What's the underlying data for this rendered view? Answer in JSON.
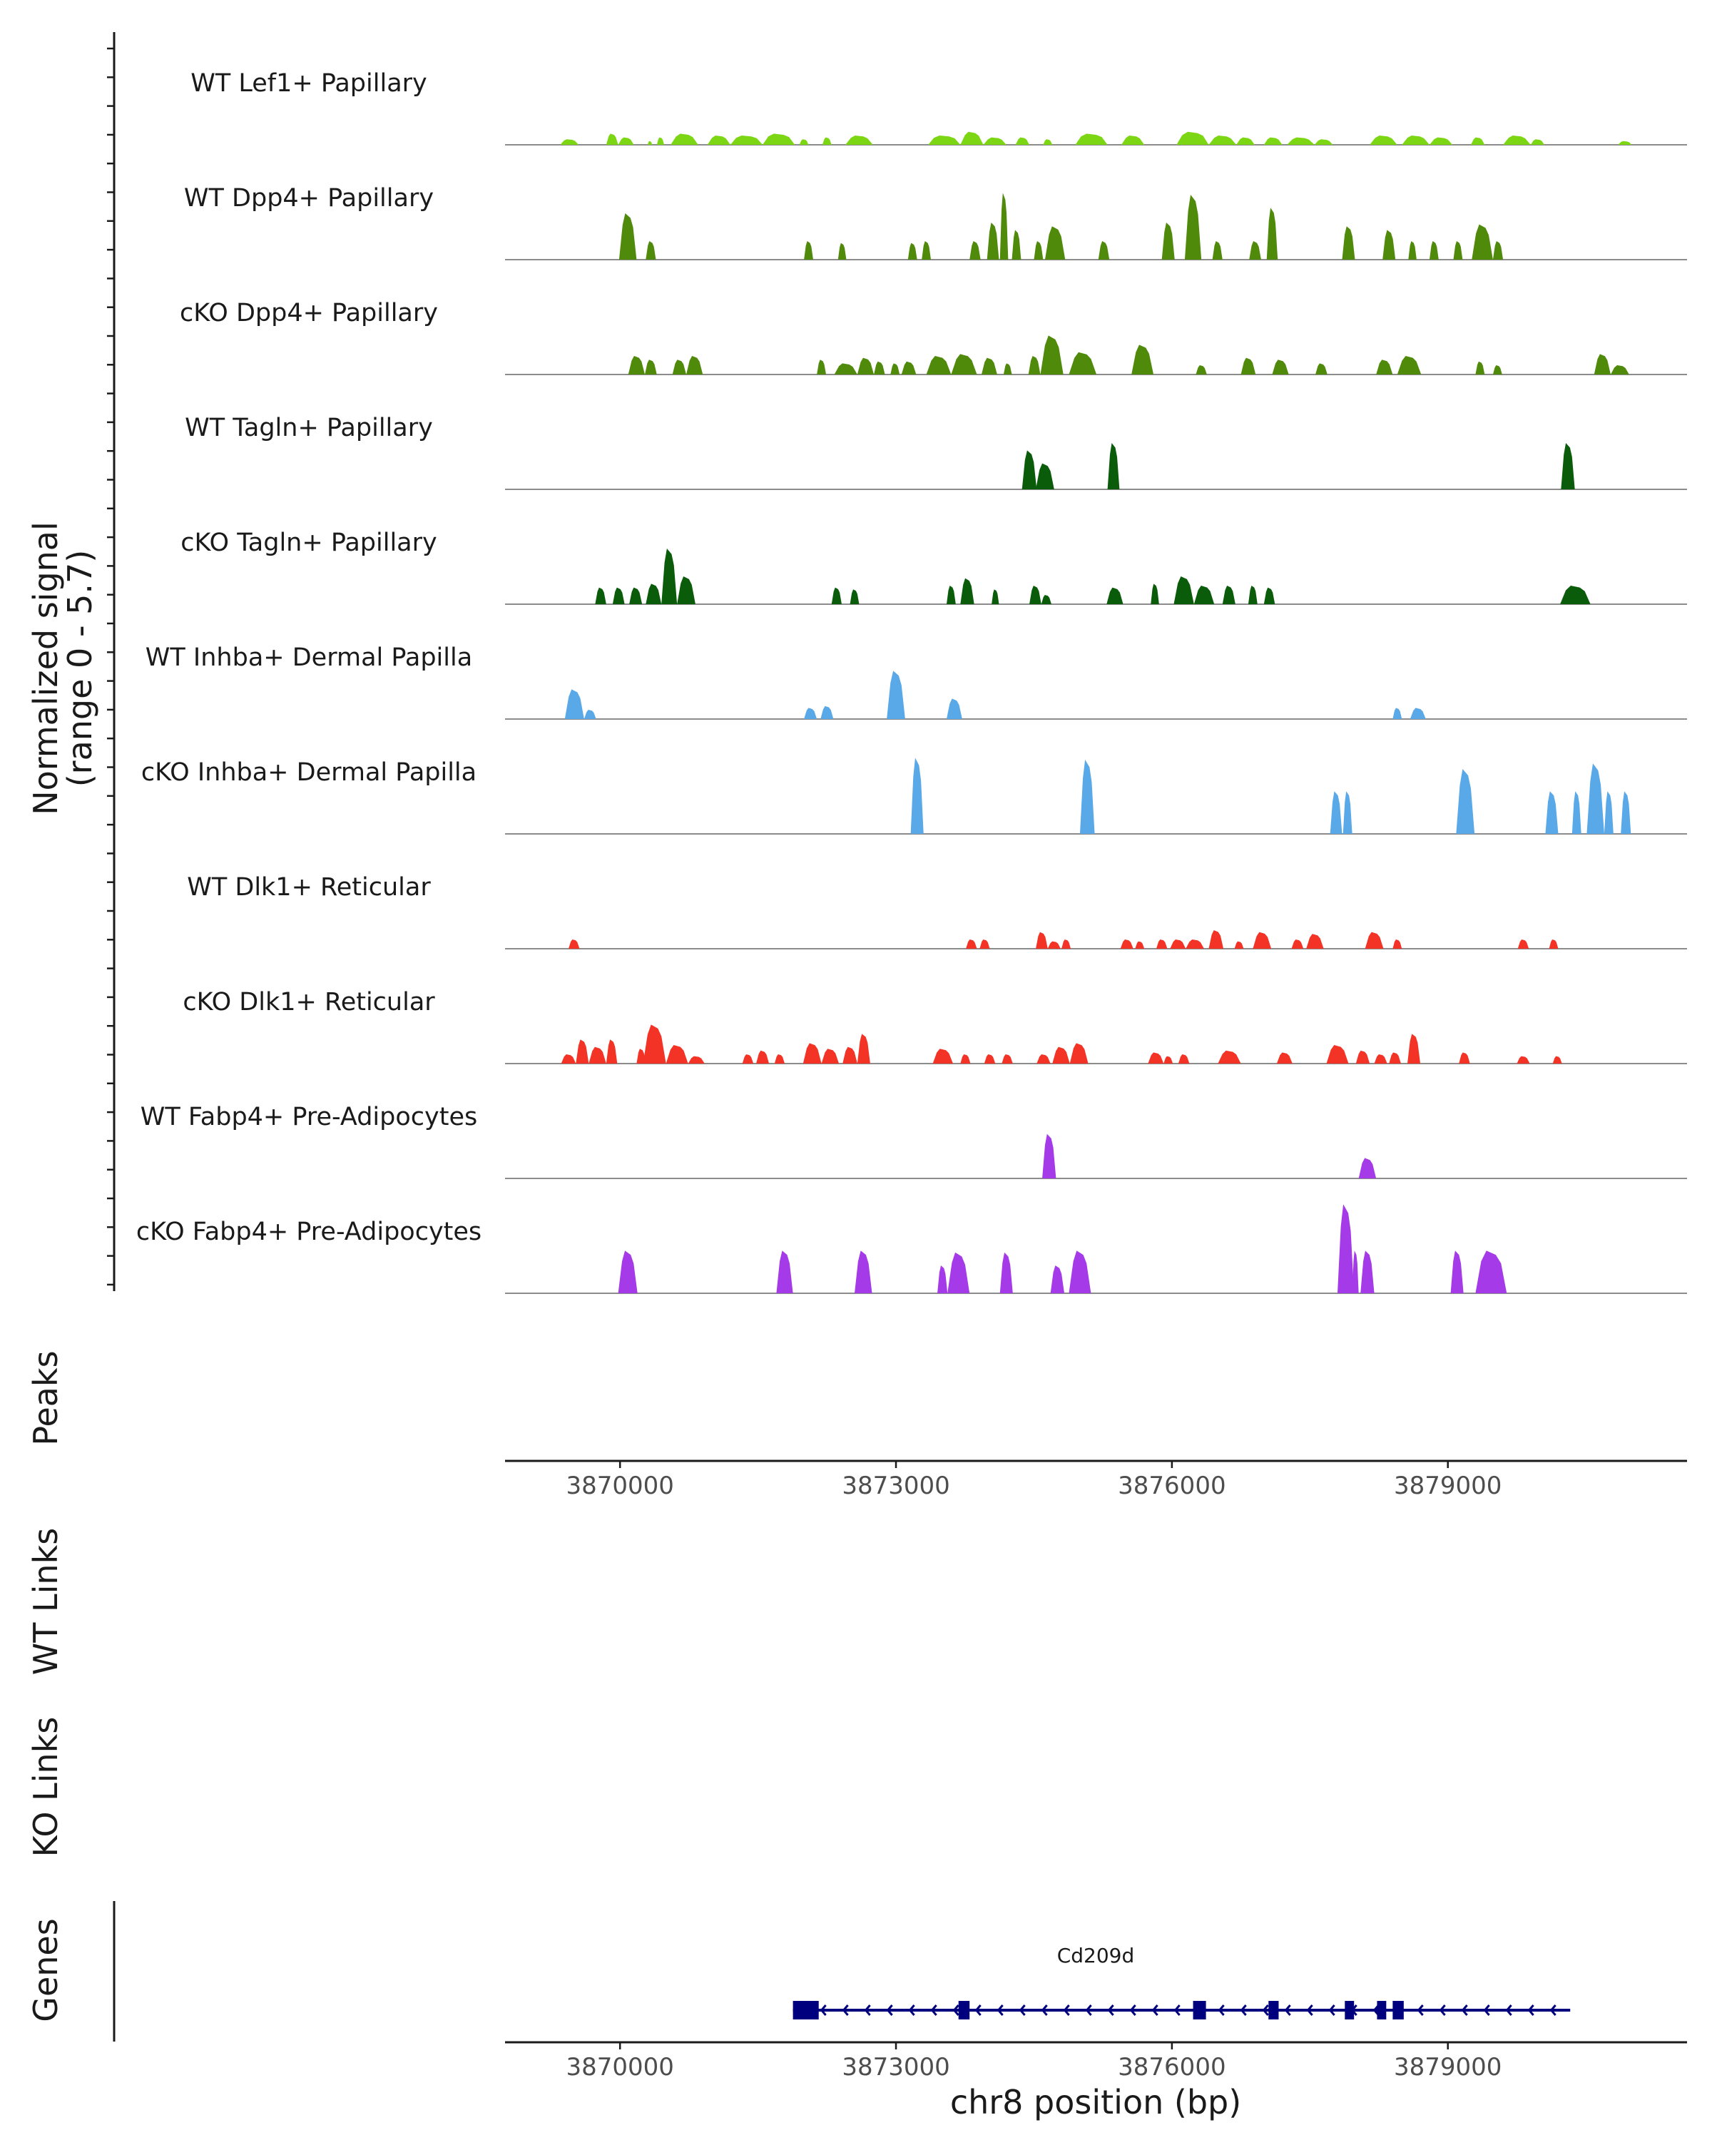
{
  "chart_data": {
    "type": "area",
    "title": "",
    "chromosome": "chr8",
    "xlabel": "chr8 position (bp)",
    "ylabel": [
      "Normalized signal",
      "(range 0 - 5.7)"
    ],
    "xlim": [
      3868750,
      3881600
    ],
    "ylim": [
      0,
      5.7
    ],
    "x_ticks": [
      {
        "value": 3870000,
        "label": "3870000"
      },
      {
        "value": 3873000,
        "label": "3873000"
      },
      {
        "value": 3876000,
        "label": "3876000"
      },
      {
        "value": 3879000,
        "label": "3879000"
      }
    ],
    "panel_labels": {
      "peaks": "Peaks",
      "wt_links": "WT Links",
      "ko_links": "KO Links",
      "genes": "Genes"
    },
    "tracks": [
      {
        "name": "WT Lef1+ Papillary",
        "color": "#7cd614",
        "segments": [
          [
            3869350,
            3869550,
            0.3
          ],
          [
            3869850,
            3869980,
            0.6
          ],
          [
            3869980,
            3870150,
            0.4
          ],
          [
            3870300,
            3870350,
            0.2
          ],
          [
            3870400,
            3870480,
            0.4
          ],
          [
            3870550,
            3870850,
            0.6
          ],
          [
            3870950,
            3871200,
            0.5
          ],
          [
            3871200,
            3871550,
            0.5
          ],
          [
            3871550,
            3871900,
            0.6
          ],
          [
            3871950,
            3872050,
            0.3
          ],
          [
            3872200,
            3872300,
            0.4
          ],
          [
            3872450,
            3872750,
            0.5
          ],
          [
            3873350,
            3873700,
            0.5
          ],
          [
            3873700,
            3873950,
            0.7
          ],
          [
            3873950,
            3874200,
            0.4
          ],
          [
            3874300,
            3874450,
            0.4
          ],
          [
            3874600,
            3874700,
            0.3
          ],
          [
            3874950,
            3875300,
            0.6
          ],
          [
            3875450,
            3875700,
            0.5
          ],
          [
            3876050,
            3876400,
            0.7
          ],
          [
            3876400,
            3876700,
            0.5
          ],
          [
            3876700,
            3876900,
            0.4
          ],
          [
            3877000,
            3877200,
            0.4
          ],
          [
            3877250,
            3877550,
            0.4
          ],
          [
            3877550,
            3877750,
            0.3
          ],
          [
            3878150,
            3878450,
            0.5
          ],
          [
            3878500,
            3878800,
            0.5
          ],
          [
            3878800,
            3879050,
            0.4
          ],
          [
            3879250,
            3879400,
            0.4
          ],
          [
            3879600,
            3879900,
            0.5
          ],
          [
            3879900,
            3880050,
            0.3
          ],
          [
            3880850,
            3881000,
            0.2
          ]
        ]
      },
      {
        "name": "WT Dpp4+ Papillary",
        "color": "#4f8a0b",
        "segments": [
          [
            3869990,
            3870180,
            2.5
          ],
          [
            3870280,
            3870390,
            1.0
          ],
          [
            3872000,
            3872100,
            1.0
          ],
          [
            3872370,
            3872460,
            0.9
          ],
          [
            3873130,
            3873230,
            0.9
          ],
          [
            3873280,
            3873380,
            1.0
          ],
          [
            3873800,
            3873920,
            1.0
          ],
          [
            3873990,
            3874120,
            2.0
          ],
          [
            3874130,
            3874220,
            3.6
          ],
          [
            3874260,
            3874360,
            1.6
          ],
          [
            3874500,
            3874600,
            1.0
          ],
          [
            3874620,
            3874840,
            1.8
          ],
          [
            3875200,
            3875320,
            1.0
          ],
          [
            3875890,
            3876030,
            2.0
          ],
          [
            3876140,
            3876320,
            3.5
          ],
          [
            3876440,
            3876550,
            1.0
          ],
          [
            3876840,
            3876970,
            1.0
          ],
          [
            3877030,
            3877150,
            2.8
          ],
          [
            3877850,
            3877990,
            1.8
          ],
          [
            3878290,
            3878430,
            1.6
          ],
          [
            3878570,
            3878660,
            1.0
          ],
          [
            3878800,
            3878900,
            1.0
          ],
          [
            3879060,
            3879160,
            1.0
          ],
          [
            3879260,
            3879490,
            1.9
          ],
          [
            3879490,
            3879600,
            1.0
          ]
        ]
      },
      {
        "name": "cKO Dpp4+ Papillary",
        "color": "#4f8a0b",
        "segments": [
          [
            3870090,
            3870270,
            1.0
          ],
          [
            3870270,
            3870400,
            0.8
          ],
          [
            3870570,
            3870720,
            0.8
          ],
          [
            3870720,
            3870900,
            1.0
          ],
          [
            3872140,
            3872240,
            0.8
          ],
          [
            3872330,
            3872580,
            0.6
          ],
          [
            3872580,
            3872760,
            0.9
          ],
          [
            3872760,
            3872880,
            0.7
          ],
          [
            3872940,
            3873040,
            0.6
          ],
          [
            3873060,
            3873220,
            0.7
          ],
          [
            3873330,
            3873600,
            1.0
          ],
          [
            3873600,
            3873880,
            1.1
          ],
          [
            3873930,
            3874100,
            0.9
          ],
          [
            3874170,
            3874260,
            0.6
          ],
          [
            3874440,
            3874570,
            1.0
          ],
          [
            3874570,
            3874820,
            2.1
          ],
          [
            3874880,
            3875180,
            1.2
          ],
          [
            3875560,
            3875800,
            1.6
          ],
          [
            3876260,
            3876380,
            0.5
          ],
          [
            3876750,
            3876910,
            0.9
          ],
          [
            3877090,
            3877270,
            0.8
          ],
          [
            3877560,
            3877690,
            0.6
          ],
          [
            3878220,
            3878400,
            0.8
          ],
          [
            3878450,
            3878710,
            1.0
          ],
          [
            3879300,
            3879400,
            0.7
          ],
          [
            3879490,
            3879590,
            0.5
          ],
          [
            3880590,
            3880770,
            1.1
          ],
          [
            3880770,
            3880970,
            0.5
          ]
        ]
      },
      {
        "name": "WT Tagln+ Papillary",
        "color": "#0a5c0a",
        "segments": [
          [
            3874370,
            3874530,
            2.1
          ],
          [
            3874520,
            3874720,
            1.4
          ],
          [
            3875300,
            3875430,
            2.5
          ],
          [
            3880230,
            3880380,
            2.5
          ]
        ]
      },
      {
        "name": "cKO Tagln+ Papillary",
        "color": "#0a5c0a",
        "segments": [
          [
            3869730,
            3869850,
            0.9
          ],
          [
            3869920,
            3870050,
            0.9
          ],
          [
            3870100,
            3870240,
            0.9
          ],
          [
            3870280,
            3870450,
            1.1
          ],
          [
            3870450,
            3870620,
            3.0
          ],
          [
            3870620,
            3870820,
            1.5
          ],
          [
            3872300,
            3872410,
            0.9
          ],
          [
            3872500,
            3872600,
            0.8
          ],
          [
            3873550,
            3873650,
            1.0
          ],
          [
            3873700,
            3873850,
            1.4
          ],
          [
            3874040,
            3874120,
            0.8
          ],
          [
            3874450,
            3874580,
            1.0
          ],
          [
            3874580,
            3874690,
            0.5
          ],
          [
            3875290,
            3875470,
            0.9
          ],
          [
            3875770,
            3875860,
            1.1
          ],
          [
            3876020,
            3876240,
            1.5
          ],
          [
            3876240,
            3876460,
            1.0
          ],
          [
            3876550,
            3876690,
            1.0
          ],
          [
            3876830,
            3876930,
            1.0
          ],
          [
            3877000,
            3877120,
            0.9
          ],
          [
            3880220,
            3880550,
            1.0
          ]
        ]
      },
      {
        "name": "WT Inhba+ Dermal Papilla",
        "color": "#59a8e8",
        "segments": [
          [
            3869400,
            3869610,
            1.6
          ],
          [
            3869610,
            3869740,
            0.5
          ],
          [
            3872000,
            3872140,
            0.6
          ],
          [
            3872180,
            3872320,
            0.7
          ],
          [
            3872900,
            3873100,
            2.6
          ],
          [
            3873550,
            3873720,
            1.1
          ],
          [
            3878400,
            3878500,
            0.6
          ],
          [
            3878590,
            3878760,
            0.6
          ]
        ]
      },
      {
        "name": "cKO Inhba+ Dermal Papilla",
        "color": "#59a8e8",
        "segments": [
          [
            3873160,
            3873300,
            4.1
          ],
          [
            3875000,
            3875160,
            4.0
          ],
          [
            3877720,
            3877850,
            2.3
          ],
          [
            3877860,
            3877960,
            2.3
          ],
          [
            3879090,
            3879290,
            3.5
          ],
          [
            3880060,
            3880200,
            2.3
          ],
          [
            3880350,
            3880450,
            2.3
          ],
          [
            3880510,
            3880700,
            3.8
          ],
          [
            3880700,
            3880800,
            2.3
          ],
          [
            3880880,
            3880990,
            2.3
          ]
        ]
      },
      {
        "name": "WT Dlk1+ Reticular",
        "color": "#f23325",
        "segments": [
          [
            3869440,
            3869560,
            0.5
          ],
          [
            3873760,
            3873880,
            0.5
          ],
          [
            3873910,
            3874020,
            0.5
          ],
          [
            3874520,
            3874650,
            0.9
          ],
          [
            3874650,
            3874790,
            0.4
          ],
          [
            3874800,
            3874900,
            0.5
          ],
          [
            3875440,
            3875580,
            0.5
          ],
          [
            3875600,
            3875700,
            0.4
          ],
          [
            3875830,
            3875950,
            0.5
          ],
          [
            3875980,
            3876150,
            0.5
          ],
          [
            3876150,
            3876350,
            0.5
          ],
          [
            3876400,
            3876560,
            1.0
          ],
          [
            3876680,
            3876780,
            0.4
          ],
          [
            3876880,
            3877080,
            0.9
          ],
          [
            3877300,
            3877430,
            0.5
          ],
          [
            3877460,
            3877650,
            0.8
          ],
          [
            3878100,
            3878300,
            0.9
          ],
          [
            3878400,
            3878500,
            0.5
          ],
          [
            3879760,
            3879880,
            0.5
          ],
          [
            3880100,
            3880200,
            0.5
          ]
        ]
      },
      {
        "name": "cKO Dlk1+ Reticular",
        "color": "#f23325",
        "segments": [
          [
            3869360,
            3869520,
            0.5
          ],
          [
            3869520,
            3869660,
            1.3
          ],
          [
            3869660,
            3869850,
            0.9
          ],
          [
            3869850,
            3869970,
            1.3
          ],
          [
            3870180,
            3870280,
            0.8
          ],
          [
            3870250,
            3870500,
            2.1
          ],
          [
            3870500,
            3870740,
            1.0
          ],
          [
            3870740,
            3870920,
            0.4
          ],
          [
            3871330,
            3871450,
            0.5
          ],
          [
            3871480,
            3871620,
            0.7
          ],
          [
            3871680,
            3871790,
            0.5
          ],
          [
            3871990,
            3872190,
            1.1
          ],
          [
            3872190,
            3872380,
            0.8
          ],
          [
            3872420,
            3872580,
            0.9
          ],
          [
            3872580,
            3872720,
            1.6
          ],
          [
            3873400,
            3873620,
            0.8
          ],
          [
            3873700,
            3873810,
            0.5
          ],
          [
            3873960,
            3874080,
            0.5
          ],
          [
            3874150,
            3874270,
            0.5
          ],
          [
            3874530,
            3874680,
            0.5
          ],
          [
            3874700,
            3874890,
            0.9
          ],
          [
            3874890,
            3875090,
            1.1
          ],
          [
            3875740,
            3875910,
            0.6
          ],
          [
            3875910,
            3876010,
            0.4
          ],
          [
            3876070,
            3876190,
            0.5
          ],
          [
            3876500,
            3876750,
            0.7
          ],
          [
            3877140,
            3877310,
            0.6
          ],
          [
            3877680,
            3877920,
            1.0
          ],
          [
            3878000,
            3878150,
            0.7
          ],
          [
            3878200,
            3878340,
            0.5
          ],
          [
            3878360,
            3878490,
            0.6
          ],
          [
            3878560,
            3878700,
            1.6
          ],
          [
            3879120,
            3879240,
            0.6
          ],
          [
            3879750,
            3879890,
            0.4
          ],
          [
            3880140,
            3880240,
            0.4
          ]
        ]
      },
      {
        "name": "WT Fabp4+ Pre-Adipocytes",
        "color": "#a53ae8",
        "segments": [
          [
            3874590,
            3874740,
            2.4
          ],
          [
            3878030,
            3878220,
            1.1
          ]
        ]
      },
      {
        "name": "cKO Fabp4+ Pre-Adipocytes",
        "color": "#a53ae8",
        "segments": [
          [
            3869980,
            3870190,
            2.3
          ],
          [
            3871700,
            3871880,
            2.3
          ],
          [
            3872550,
            3872740,
            2.3
          ],
          [
            3873450,
            3873560,
            1.5
          ],
          [
            3873560,
            3873800,
            2.2
          ],
          [
            3874130,
            3874270,
            2.2
          ],
          [
            3874680,
            3874830,
            1.5
          ],
          [
            3874880,
            3875120,
            2.3
          ],
          [
            3877800,
            3877980,
            4.8
          ],
          [
            3877960,
            3878030,
            2.3
          ],
          [
            3878050,
            3878200,
            2.3
          ],
          [
            3879030,
            3879170,
            2.3
          ],
          [
            3879300,
            3879640,
            2.3
          ]
        ]
      }
    ],
    "gene": {
      "name": "Cd209d",
      "start": 3871880,
      "end": 3880330,
      "strand": "-",
      "color": "#00007f",
      "exons": [
        [
          3871880,
          3872160
        ],
        [
          3873680,
          3873800
        ],
        [
          3876230,
          3876370
        ],
        [
          3877050,
          3877160
        ],
        [
          3877880,
          3877980
        ],
        [
          3878230,
          3878330
        ],
        [
          3878400,
          3878520
        ]
      ]
    }
  }
}
